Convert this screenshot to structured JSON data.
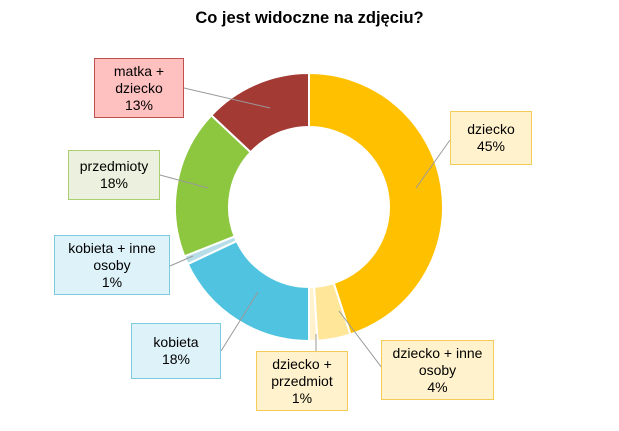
{
  "chart_data": {
    "type": "pie",
    "title": "Co jest widoczne na zdjęciu?",
    "slices": [
      {
        "name": "dziecko",
        "lines": [
          "dziecko"
        ],
        "value": 45,
        "value_label": "45%",
        "color": "#FFC000",
        "label_fill": "#FFF2CC",
        "label_border": "#F2CB59"
      },
      {
        "name": "dziecko + inne osoby",
        "lines": [
          "dziecko + inne",
          "osoby"
        ],
        "value": 4,
        "value_label": "4%",
        "color": "#FFE699",
        "label_fill": "#FFF2CC",
        "label_border": "#F2CB59"
      },
      {
        "name": "dziecko + przedmiot",
        "lines": [
          "dziecko +",
          "przedmiot"
        ],
        "value": 1,
        "value_label": "1%",
        "color": "#FFF2CC",
        "label_fill": "#FFF2CC",
        "label_border": "#F2CB59"
      },
      {
        "name": "kobieta",
        "lines": [
          "kobieta"
        ],
        "value": 18,
        "value_label": "18%",
        "color": "#4FC3DF",
        "label_fill": "#DEF2F9",
        "label_border": "#7DC9E0"
      },
      {
        "name": "kobieta + inne osoby",
        "lines": [
          "kobieta + inne",
          "osoby"
        ],
        "value": 1,
        "value_label": "1%",
        "color": "#B7DEE8",
        "label_fill": "#DEF2F9",
        "label_border": "#7DC9E0"
      },
      {
        "name": "przedmioty",
        "lines": [
          "przedmioty"
        ],
        "value": 18,
        "value_label": "18%",
        "color": "#8DC63F",
        "label_fill": "#EBF1DE",
        "label_border": "#A9CF6F"
      },
      {
        "name": "matka + dziecko",
        "lines": [
          "matka +",
          "dziecko"
        ],
        "value": 13,
        "value_label": "13%",
        "color": "#A33A34",
        "label_fill": "#FFC0C0",
        "label_border": "#C0504D"
      }
    ]
  }
}
